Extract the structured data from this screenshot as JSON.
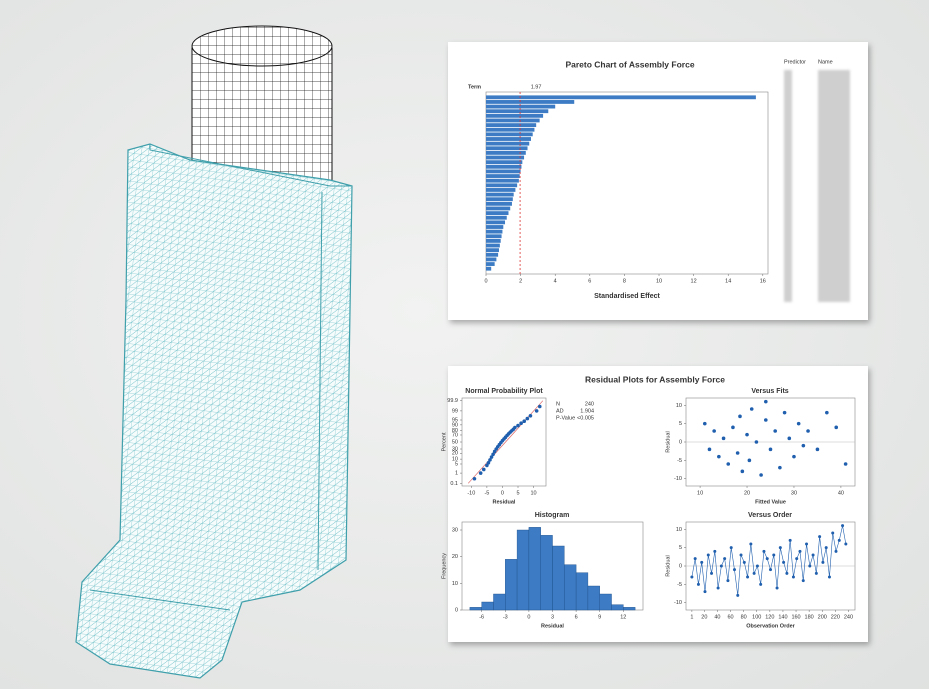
{
  "chart_data": [
    {
      "type": "pareto",
      "title": "Pareto Chart of Assembly Force",
      "xlabel": "Standardised Effect",
      "term_label": "Term",
      "reference_line": 1.97,
      "color": "#3d7cc4",
      "categories": [
        null,
        null,
        null,
        null,
        null,
        null,
        null,
        null,
        null,
        null,
        null,
        null,
        null,
        null,
        null,
        null,
        null,
        null,
        null,
        null,
        null,
        null,
        null,
        null,
        null,
        null,
        null,
        null,
        null,
        null,
        null,
        null,
        null,
        null,
        null,
        null,
        null,
        null
      ],
      "values": [
        15.6,
        5.1,
        4.0,
        3.6,
        3.3,
        3.1,
        2.9,
        2.8,
        2.7,
        2.6,
        2.5,
        2.4,
        2.3,
        2.2,
        2.1,
        2.05,
        2.0,
        1.95,
        1.9,
        1.8,
        1.7,
        1.6,
        1.55,
        1.5,
        1.4,
        1.3,
        1.2,
        1.1,
        1.0,
        0.95,
        0.9,
        0.85,
        0.8,
        0.75,
        0.7,
        0.6,
        0.5,
        0.3
      ],
      "xlim": [
        0,
        16.3
      ],
      "xticks": [
        0,
        2,
        4,
        6,
        8,
        10,
        12,
        14,
        16
      ]
    },
    {
      "type": "scatter",
      "title": "Normal Probability Plot",
      "xlabel": "Residual",
      "ylabel": "Percent",
      "yscale": "probability",
      "color": "#1f5fae",
      "x": [
        -9,
        -7,
        -6,
        -5,
        -4.5,
        -4,
        -3.5,
        -3,
        -2.5,
        -2,
        -1.5,
        -1,
        -0.5,
        0,
        0.5,
        1,
        1.5,
        2,
        2.5,
        3,
        3.5,
        4,
        5,
        6,
        7,
        8,
        9,
        11,
        12
      ],
      "y": [
        0.3,
        1,
        2,
        4,
        6,
        9,
        13,
        18,
        24,
        30,
        36,
        42,
        48,
        54,
        59,
        64,
        69,
        73,
        77,
        80,
        83,
        86,
        89,
        92,
        94,
        96,
        97.5,
        99,
        99.6
      ],
      "fit_line_x": [
        -11,
        13
      ],
      "fit_line_y": [
        0.1,
        99.9
      ],
      "xlim": [
        -13,
        14
      ],
      "xticks": [
        -10,
        -5,
        0,
        5,
        10
      ],
      "ylim": [
        0.05,
        99.95
      ],
      "yticks": [
        0.1,
        1,
        5,
        10,
        20,
        30,
        50,
        70,
        80,
        90,
        95,
        99,
        99.9
      ],
      "stats": [
        {
          "label": "N",
          "value": 240
        },
        {
          "label": "AD",
          "value": 1.904
        },
        {
          "label": "P-Value",
          "value": "<0.005"
        }
      ]
    },
    {
      "type": "scatter",
      "title": "Versus Fits",
      "xlabel": "Fitted Value",
      "ylabel": "Residual",
      "color": "#1f5fae",
      "reference_line": 0,
      "x": [
        11,
        12,
        13,
        14,
        15,
        16,
        17,
        18,
        18.5,
        19,
        20,
        20.5,
        21,
        22,
        23,
        24,
        25,
        26,
        27,
        28,
        29,
        30,
        31,
        32,
        33,
        35,
        37,
        39,
        41,
        24
      ],
      "y": [
        5,
        -2,
        3,
        -4,
        1,
        -6,
        4,
        -3,
        7,
        -8,
        2,
        -5,
        9,
        0,
        -9,
        6,
        -2,
        3,
        -7,
        8,
        1,
        -4,
        5,
        -1,
        3,
        -2,
        8,
        4,
        -6,
        11
      ],
      "xlim": [
        7,
        43
      ],
      "xticks": [
        10,
        20,
        30,
        40
      ],
      "ylim": [
        -12,
        12
      ],
      "yticks": [
        -10,
        -5,
        0,
        5,
        10
      ]
    },
    {
      "type": "histogram",
      "title": "Histogram",
      "xlabel": "Residual",
      "ylabel": "Frequency",
      "color": "#3d7cc4",
      "bins": [
        -7.5,
        -6,
        -4.5,
        -3,
        -1.5,
        0,
        1.5,
        3,
        4.5,
        6,
        7.5,
        9,
        10.5,
        12,
        13.5
      ],
      "values": [
        1,
        3,
        6,
        19,
        30,
        31,
        28,
        24,
        17,
        14,
        9,
        6,
        2,
        1
      ],
      "xlim": [
        -8.5,
        14.5
      ],
      "xticks": [
        -6,
        -3,
        0,
        3,
        6,
        9,
        12
      ],
      "ylim": [
        0,
        33
      ],
      "yticks": [
        0,
        10,
        20,
        30
      ]
    },
    {
      "type": "line",
      "title": "Versus Order",
      "xlabel": "Observation Order",
      "ylabel": "Residual",
      "color": "#1f5fae",
      "reference_line": 0,
      "x": [
        1,
        6,
        11,
        16,
        21,
        26,
        31,
        36,
        41,
        46,
        51,
        56,
        61,
        66,
        71,
        76,
        81,
        86,
        91,
        96,
        101,
        106,
        111,
        116,
        121,
        126,
        131,
        136,
        141,
        146,
        151,
        156,
        161,
        166,
        171,
        176,
        181,
        186,
        191,
        196,
        201,
        206,
        211,
        216,
        221,
        226,
        231,
        236
      ],
      "y": [
        -3,
        2,
        -5,
        1,
        -7,
        3,
        -2,
        4,
        -6,
        0,
        2,
        -4,
        5,
        -1,
        -8,
        3,
        1,
        -3,
        6,
        -2,
        0,
        -5,
        4,
        2,
        -1,
        3,
        -6,
        5,
        1,
        -2,
        7,
        -3,
        2,
        4,
        -4,
        6,
        0,
        3,
        -2,
        8,
        1,
        5,
        -3,
        9,
        4,
        7,
        11,
        6
      ],
      "xlim": [
        -8,
        250
      ],
      "xticks": [
        1,
        20,
        40,
        60,
        80,
        100,
        120,
        140,
        160,
        180,
        200,
        220,
        240
      ],
      "ylim": [
        -12,
        12
      ],
      "yticks": [
        -10,
        -5,
        0,
        5,
        10
      ]
    }
  ],
  "residual_panel_title": "Residual Plots for Assembly Force",
  "pareto_table": {
    "headers": [
      "Predictor",
      "Name"
    ]
  }
}
